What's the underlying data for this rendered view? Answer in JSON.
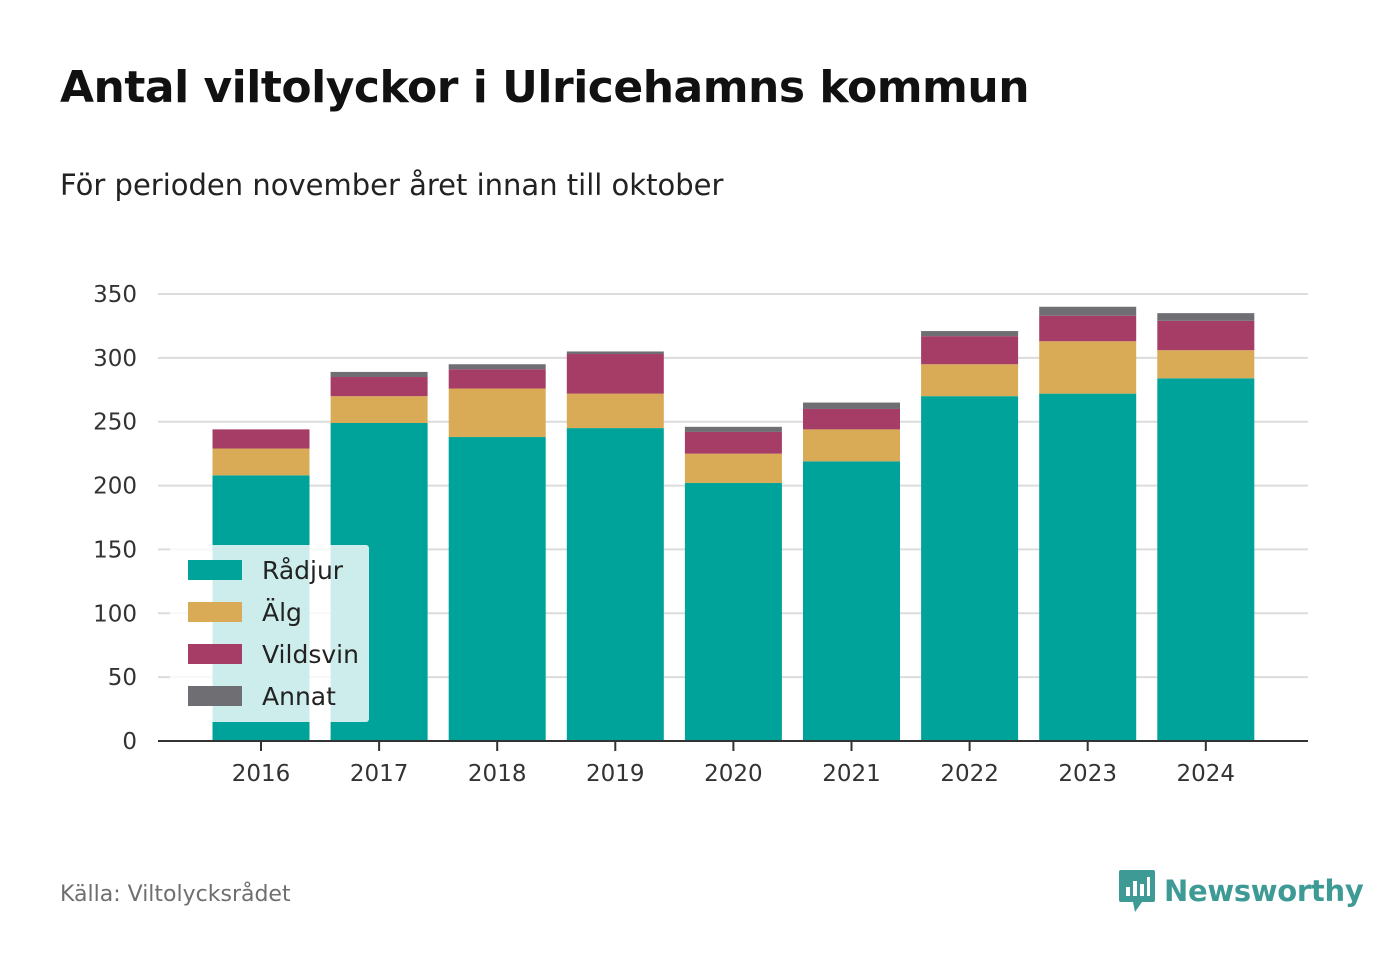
{
  "title": "Antal viltolyckor i Ulricehamns kommun",
  "subtitle": "För perioden november året innan till oktober",
  "source": "Källa: Viltolycksrådet",
  "brand": {
    "name": "Newsworthy",
    "icon": "newsworthy-logo-icon",
    "color": "#3d9a94"
  },
  "chart_data": {
    "type": "bar",
    "stacked": true,
    "categories": [
      "2016",
      "2017",
      "2018",
      "2019",
      "2020",
      "2021",
      "2022",
      "2023",
      "2024"
    ],
    "series": [
      {
        "name": "Rådjur",
        "color": "#00a399",
        "values": [
          208,
          249,
          238,
          245,
          202,
          219,
          270,
          272,
          284
        ]
      },
      {
        "name": "Älg",
        "color": "#d9ab56",
        "values": [
          21,
          21,
          38,
          27,
          23,
          25,
          25,
          41,
          22
        ]
      },
      {
        "name": "Vildsvin",
        "color": "#a63d66",
        "values": [
          15,
          15,
          15,
          31,
          17,
          16,
          22,
          20,
          23
        ]
      },
      {
        "name": "Annat",
        "color": "#6e6e73",
        "values": [
          0,
          4,
          4,
          2,
          4,
          5,
          4,
          7,
          6
        ]
      }
    ],
    "yticks": [
      0,
      50,
      100,
      150,
      200,
      250,
      300,
      350
    ],
    "ylim": [
      0,
      350
    ],
    "grid": true,
    "legend": "bottom-left"
  }
}
